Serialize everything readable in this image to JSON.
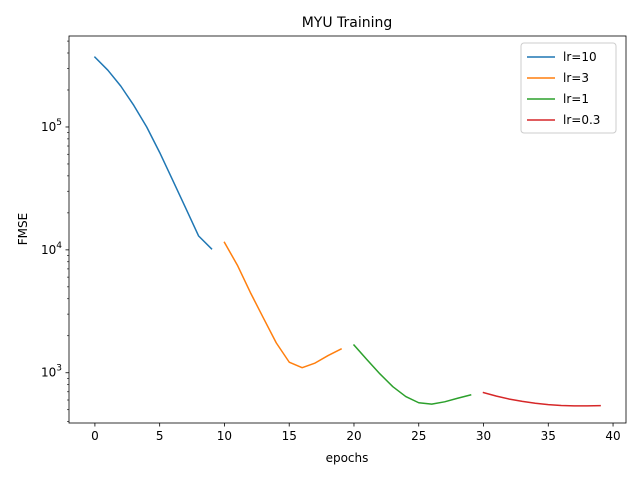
{
  "chart_data": {
    "type": "line",
    "title": "MYU Training",
    "xlabel": "epochs",
    "ylabel": "FMSE",
    "xlim": [
      -2,
      41
    ],
    "ylim": [
      390,
      550000
    ],
    "yscale": "log",
    "grid": false,
    "legend_position": "top-right",
    "x_ticks": [
      0,
      5,
      10,
      15,
      20,
      25,
      30,
      35,
      40
    ],
    "y_ticks": [
      {
        "value": 1000,
        "base": "10",
        "exp": "3"
      },
      {
        "value": 10000,
        "base": "10",
        "exp": "4"
      },
      {
        "value": 100000,
        "base": "10",
        "exp": "5"
      }
    ],
    "series": [
      {
        "name": "lr=10",
        "color": "#1f77b4",
        "x": [
          0,
          1,
          2,
          3,
          4,
          5,
          6,
          7,
          8,
          9
        ],
        "y": [
          370000,
          290000,
          215000,
          150000,
          100000,
          62000,
          37000,
          22000,
          13000,
          10200
        ]
      },
      {
        "name": "lr=3",
        "color": "#ff7f0e",
        "x": [
          10,
          11,
          12,
          13,
          14,
          15,
          16,
          17,
          18,
          19
        ],
        "y": [
          11500,
          7500,
          4500,
          2800,
          1750,
          1220,
          1100,
          1200,
          1380,
          1560
        ]
      },
      {
        "name": "lr=1",
        "color": "#2ca02c",
        "x": [
          20,
          21,
          22,
          23,
          24,
          25,
          26,
          27,
          28,
          29
        ],
        "y": [
          1680,
          1280,
          980,
          770,
          640,
          570,
          555,
          580,
          620,
          660
        ]
      },
      {
        "name": "lr=0.3",
        "color": "#d62728",
        "x": [
          30,
          31,
          32,
          33,
          34,
          35,
          36,
          37,
          38,
          39
        ],
        "y": [
          690,
          645,
          610,
          585,
          565,
          550,
          542,
          538,
          538,
          540
        ]
      }
    ]
  }
}
